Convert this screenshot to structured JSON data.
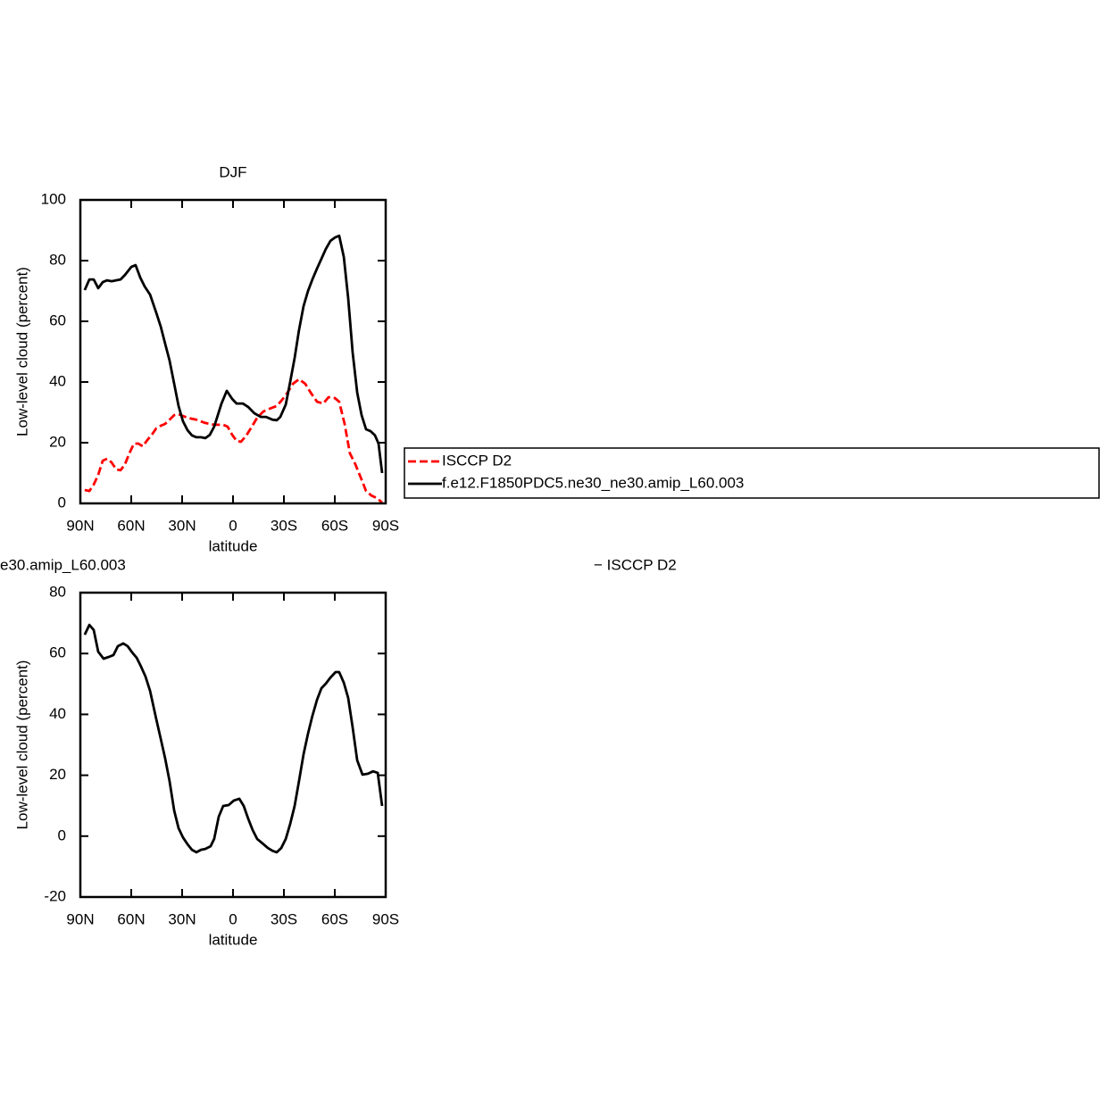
{
  "chart_data": [
    {
      "type": "line",
      "title": "DJF",
      "xlabel": "latitude",
      "ylabel": "Low-level cloud (percent)",
      "xlim": [
        90,
        -90
      ],
      "xticks": [
        {
          "value": 90,
          "label": "90N"
        },
        {
          "value": 60,
          "label": "60N"
        },
        {
          "value": 30,
          "label": "30N"
        },
        0,
        {
          "value": -30,
          "label": "30S"
        },
        {
          "value": -60,
          "label": "60S"
        },
        {
          "value": -90,
          "label": "90S"
        }
      ],
      "ylim": [
        0,
        100
      ],
      "yticks": [
        0,
        20,
        40,
        60,
        80,
        100
      ],
      "legend": "right",
      "series": [
        {
          "name": "ISCCP D2",
          "color": "#ff0000",
          "dashed": true,
          "x": [
            87.4,
            84.7,
            82.1,
            79.5,
            76.8,
            74.2,
            71.6,
            68.9,
            66.3,
            63.7,
            61.1,
            58.4,
            55.8,
            53.2,
            50.5,
            47.9,
            45.3,
            42.6,
            40,
            37.4,
            34.7,
            32.1,
            29.5,
            26.8,
            21.6,
            16.3,
            11.1,
            5.8,
            3.2,
            0.5,
            -2.1,
            -4.7,
            -7.9,
            -11.1,
            -14.2,
            -17.9,
            -21.6,
            -25.8,
            -28.9,
            -32.1,
            -35.3,
            -38.9,
            -42.6,
            -45.8,
            -49.5,
            -53.2,
            -56.3,
            -60,
            -62.6,
            -65.8,
            -68.9,
            -72.1,
            -75.3,
            -78.4,
            -81.6,
            -84.7,
            -87.9
          ],
          "values": [
            4.4,
            4.1,
            6.2,
            9.4,
            14.1,
            14.7,
            13.5,
            11.2,
            10.9,
            12.9,
            16.5,
            19.7,
            19.7,
            18.8,
            20.9,
            22.6,
            24.7,
            25.6,
            26.2,
            27.6,
            29.1,
            29.4,
            28.8,
            28.2,
            27.6,
            26.5,
            25.9,
            25.9,
            25.3,
            22.6,
            20.6,
            20.3,
            22.4,
            25.3,
            28.2,
            30.3,
            31.2,
            32.1,
            34.1,
            36.5,
            39.4,
            40.9,
            39.4,
            36.5,
            33.5,
            32.9,
            35,
            34.7,
            33.5,
            26.2,
            16.5,
            12.9,
            8.5,
            4.1,
            2.6,
            1.8,
            0.3
          ]
        },
        {
          "name": "f.e12.F1850PDC5.ne30_ne30.amip_L60.003",
          "color": "#000000",
          "dashed": false,
          "x": [
            87.4,
            84.7,
            82.1,
            79.5,
            76.8,
            74.2,
            71.6,
            66.3,
            63.7,
            60,
            57.4,
            54.7,
            52.1,
            48.9,
            45.3,
            42.6,
            40,
            37.4,
            34.7,
            32.1,
            29.5,
            26.8,
            24.2,
            21.6,
            18.9,
            16.3,
            13.7,
            11.1,
            6.8,
            3.7,
            0.5,
            -2.1,
            -5.8,
            -8.9,
            -12.6,
            -16.3,
            -19.5,
            -23.2,
            -25.8,
            -27.9,
            -31.1,
            -33.7,
            -36.3,
            -38.9,
            -41.6,
            -44.2,
            -46.8,
            -49.5,
            -52.1,
            -54.7,
            -57.4,
            -60,
            -62.6,
            -65.3,
            -67.9,
            -70.5,
            -73.2,
            -75.8,
            -78.4,
            -81.1,
            -83.7,
            -85.8,
            -87.9
          ],
          "values": [
            70.3,
            73.8,
            73.8,
            70.9,
            72.9,
            73.5,
            73.2,
            73.8,
            75.3,
            77.9,
            78.5,
            74.4,
            71.5,
            68.8,
            62.9,
            58.2,
            52.6,
            47.1,
            39.4,
            32.1,
            27.1,
            24.1,
            22.4,
            21.8,
            21.8,
            21.5,
            22.6,
            25.3,
            32.9,
            37.1,
            34.4,
            32.9,
            32.9,
            31.8,
            29.7,
            28.5,
            28.5,
            27.6,
            27.4,
            28.5,
            32.6,
            40,
            47.9,
            57.1,
            65,
            70,
            73.8,
            77.4,
            80.6,
            83.8,
            86.5,
            87.6,
            88.2,
            81.2,
            67.6,
            49.7,
            36.5,
            29.1,
            24.4,
            23.8,
            22.4,
            19.7,
            10
          ]
        }
      ]
    },
    {
      "type": "line",
      "title_left": "e30.amip_L60.003",
      "title_right": "− ISCCP D2",
      "xlabel": "latitude",
      "ylabel": "Low-level cloud (percent)",
      "xlim": [
        90,
        -90
      ],
      "xticks": [
        {
          "value": 90,
          "label": "90N"
        },
        {
          "value": 60,
          "label": "60N"
        },
        {
          "value": 30,
          "label": "30N"
        },
        0,
        {
          "value": -30,
          "label": "30S"
        },
        {
          "value": -60,
          "label": "60S"
        },
        {
          "value": -90,
          "label": "90S"
        }
      ],
      "ylim": [
        -20,
        80
      ],
      "yticks": [
        -20,
        0,
        20,
        40,
        60,
        80
      ],
      "series": [
        {
          "color": "#000000",
          "dashed": false,
          "x": [
            87.4,
            84.7,
            82.1,
            79.5,
            76.3,
            73.2,
            70.5,
            67.9,
            64.7,
            62.1,
            59.5,
            56.8,
            54.2,
            51.6,
            48.9,
            45.3,
            42.6,
            40,
            37.4,
            34.7,
            32.1,
            29.5,
            26.8,
            24.2,
            21.6,
            18.9,
            16.3,
            13.2,
            11.1,
            8.4,
            5.8,
            2.6,
            -0.5,
            -3.7,
            -6.3,
            -8.9,
            -11.6,
            -14.2,
            -17.4,
            -20.5,
            -23.2,
            -25.8,
            -28.4,
            -31.1,
            -33.7,
            -36.3,
            -38.9,
            -41.6,
            -44.2,
            -46.8,
            -49.5,
            -52.1,
            -54.7,
            -57.4,
            -60.5,
            -62.6,
            -65.3,
            -67.9,
            -70.5,
            -73.2,
            -76.3,
            -79.5,
            -82.6,
            -85.3,
            -87.9
          ],
          "values": [
            66.2,
            69.4,
            67.7,
            60.6,
            58.3,
            58.9,
            59.5,
            62.4,
            63.3,
            62.4,
            60.4,
            58.6,
            55.7,
            52.4,
            47.7,
            38.6,
            31.9,
            25.5,
            18.1,
            8.4,
            2.6,
            -0.4,
            -2.7,
            -4.5,
            -5.3,
            -4.5,
            -4.2,
            -3.3,
            -0.9,
            6.4,
            9.9,
            10.2,
            11.7,
            12.3,
            9.9,
            5.8,
            2,
            -0.9,
            -2.4,
            -3.9,
            -4.8,
            -5.3,
            -3.9,
            -0.9,
            4,
            9.9,
            18.1,
            26.9,
            33.7,
            39.5,
            44.8,
            48.6,
            50.1,
            52.1,
            53.9,
            53.9,
            50.4,
            45.4,
            35.7,
            24.9,
            20.2,
            20.5,
            21.3,
            20.8,
            9.9
          ]
        }
      ]
    }
  ]
}
